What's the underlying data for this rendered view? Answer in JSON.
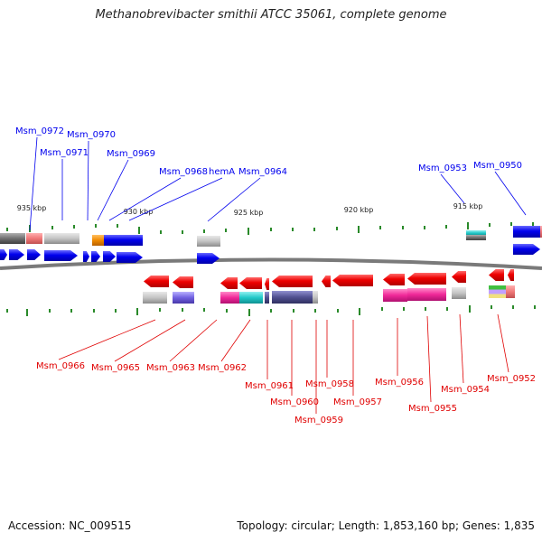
{
  "title": "Methanobrevibacter smithii ATCC 35061, complete genome",
  "footer": {
    "accession": "Accession: NC_009515",
    "summary": "Topology: circular; Length: 1,853,160 bp; Genes: 1,835"
  },
  "scale_labels": [
    "935 kbp",
    "930 kbp",
    "925 kbp",
    "920 kbp",
    "915 kbp"
  ],
  "colors": {
    "forward_strand": "#0000ee",
    "reverse_strand": "#e00000",
    "tick": "#2a8a2a",
    "backbone": "#808080"
  },
  "forward_genes": [
    "Msm_0972",
    "Msm_0971",
    "Msm_0970",
    "Msm_0969",
    "Msm_0968",
    "hemA",
    "Msm_0964",
    "Msm_0953",
    "Msm_0950"
  ],
  "reverse_genes": [
    "Msm_0966",
    "Msm_0965",
    "Msm_0963",
    "Msm_0962",
    "Msm_0961",
    "Msm_0960",
    "Msm_0959",
    "Msm_0958",
    "Msm_0957",
    "Msm_0956",
    "Msm_0955",
    "Msm_0954",
    "Msm_0952"
  ]
}
